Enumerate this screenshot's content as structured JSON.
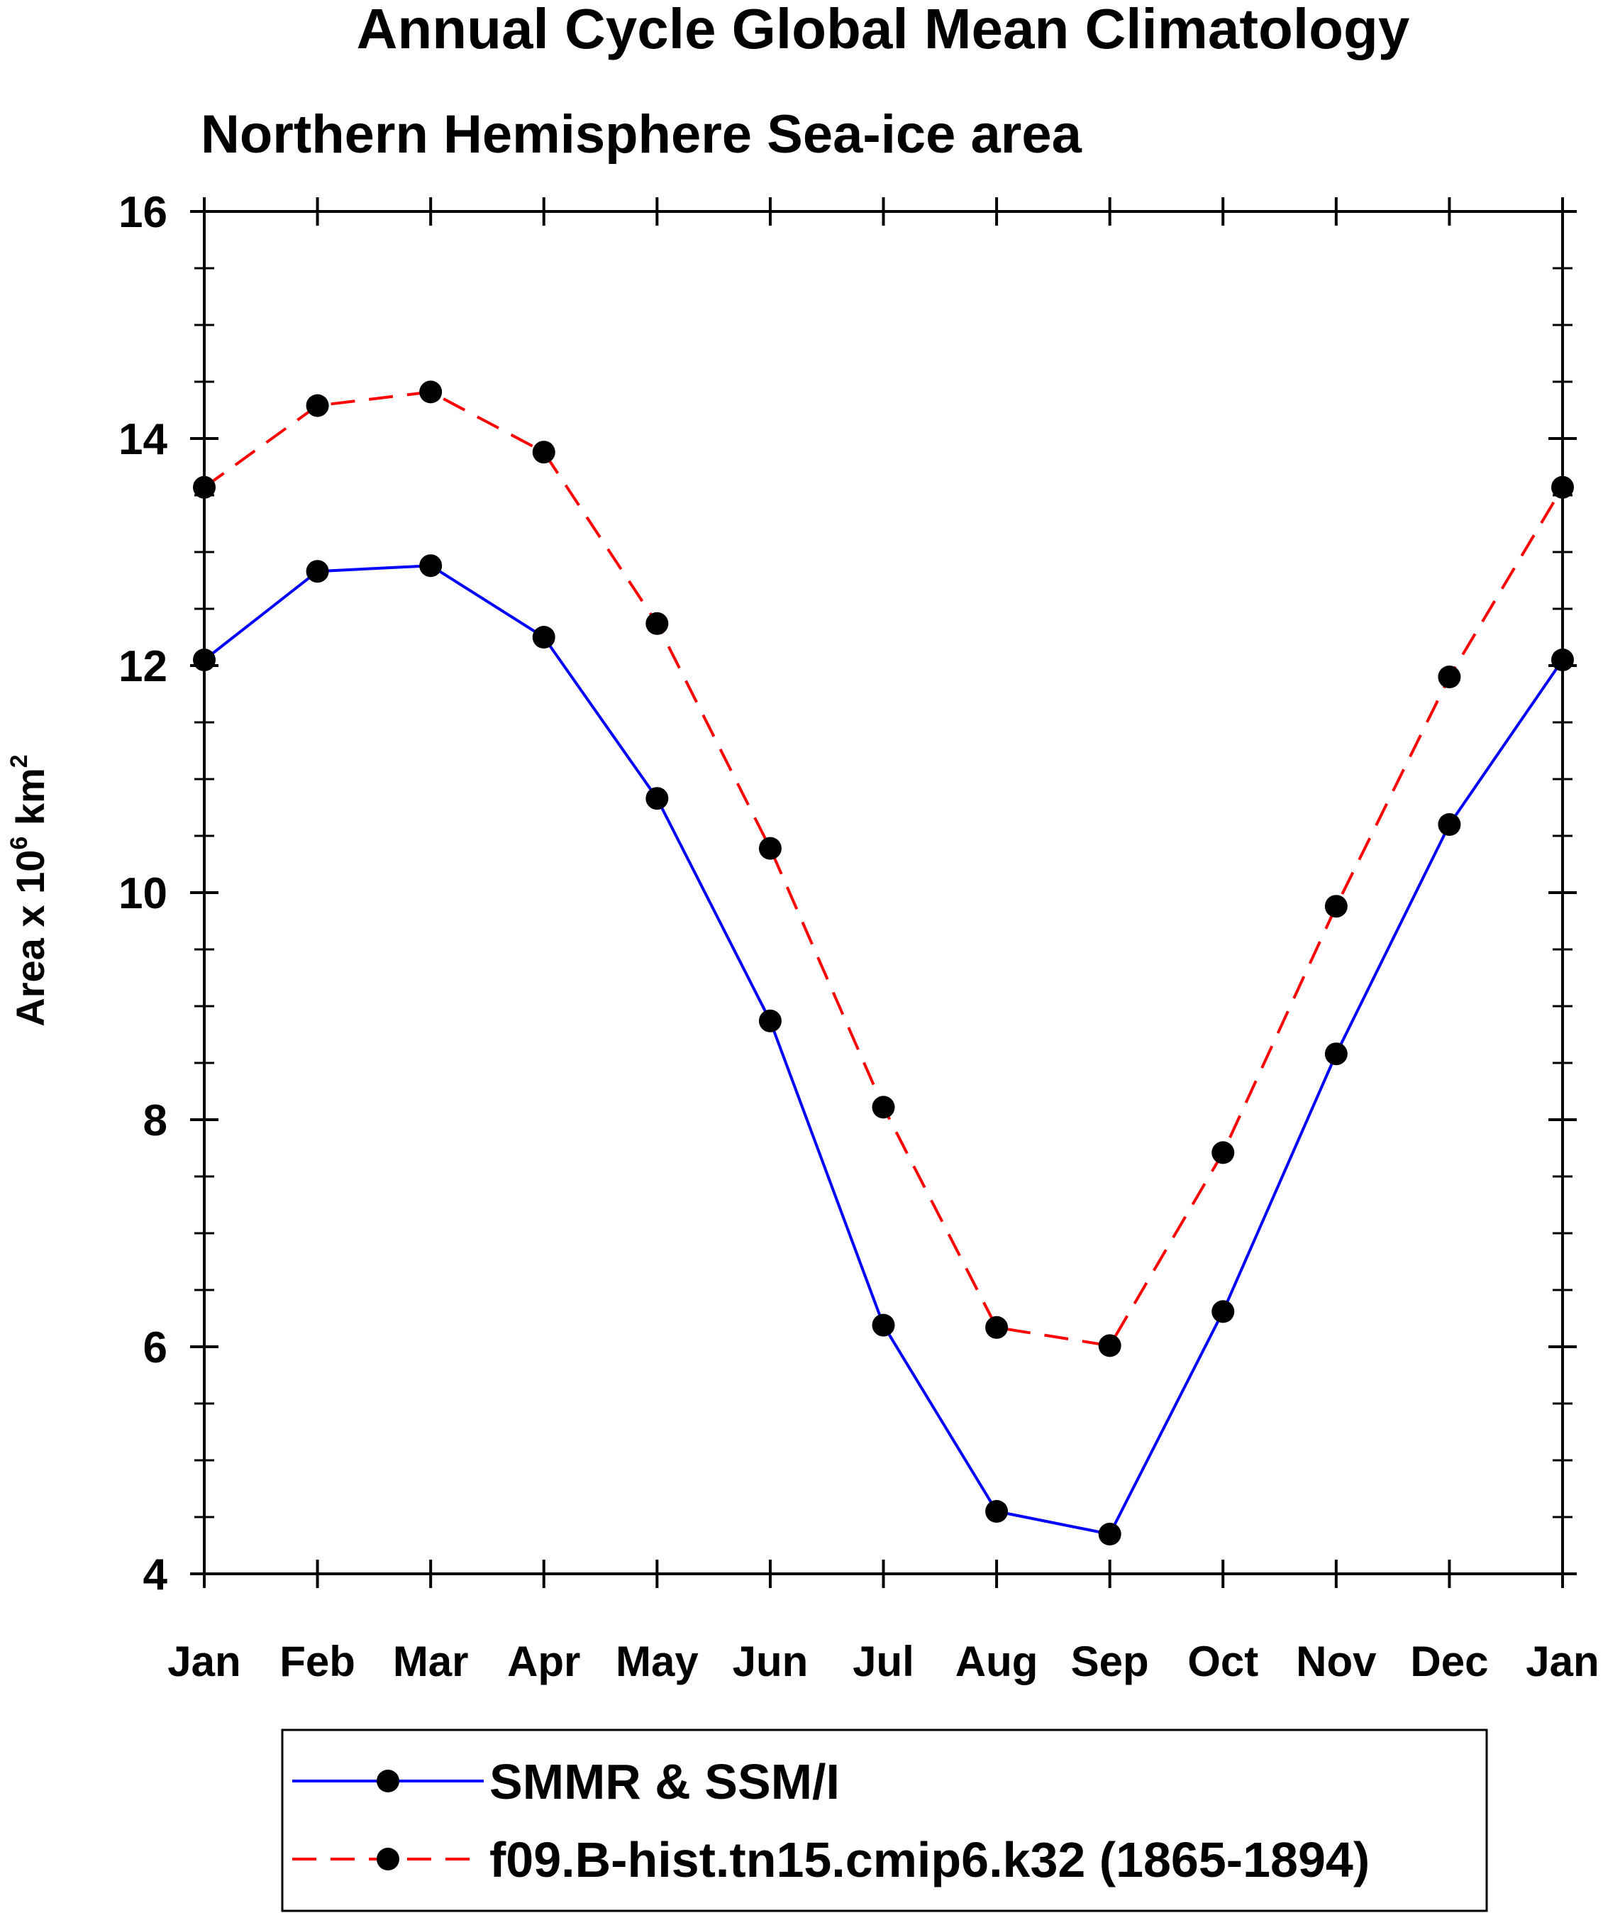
{
  "chart_data": {
    "type": "line",
    "title": "Annual Cycle Global Mean Climatology",
    "subtitle": "Northern Hemisphere Sea-ice area",
    "ylabel": {
      "main": "Area x 10",
      "exp": "6",
      "unit": " km",
      "unit_exp": "2"
    },
    "xlabel": "",
    "categories": [
      "Jan",
      "Feb",
      "Mar",
      "Apr",
      "May",
      "Jun",
      "Jul",
      "Aug",
      "Sep",
      "Oct",
      "Nov",
      "Dec",
      "Jan"
    ],
    "ylim": [
      4,
      16
    ],
    "yticks": [
      4,
      6,
      8,
      10,
      12,
      14,
      16
    ],
    "yminor_step": 0.5,
    "legend_position": "bottom",
    "series": [
      {
        "name": "SMMR & SSM/I",
        "color": "#0000ff",
        "dash": "solid",
        "marker": "filled-circle",
        "values": [
          12.05,
          12.83,
          12.88,
          12.25,
          10.83,
          8.87,
          6.19,
          4.55,
          4.35,
          6.31,
          8.58,
          10.6,
          12.05
        ]
      },
      {
        "name": "f09.B-hist.tn15.cmip6.k32 (1865-1894)",
        "color": "#ff0000",
        "dash": "dashed",
        "marker": "filled-circle",
        "values": [
          13.57,
          14.29,
          14.41,
          13.88,
          12.37,
          10.39,
          8.11,
          6.17,
          6.01,
          7.71,
          9.88,
          11.9,
          13.57
        ]
      }
    ]
  }
}
